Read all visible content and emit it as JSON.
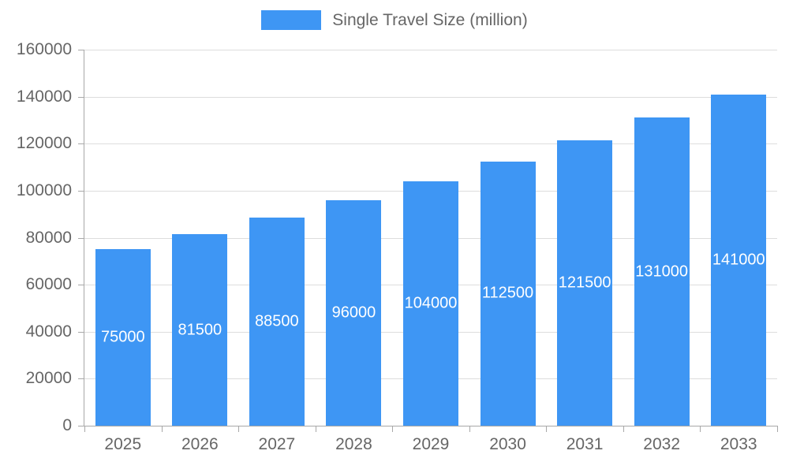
{
  "chart_data": {
    "type": "bar",
    "title": "Single Travel Size (million)",
    "categories": [
      "2025",
      "2026",
      "2027",
      "2028",
      "2029",
      "2030",
      "2031",
      "2032",
      "2033"
    ],
    "values": [
      75000,
      81500,
      88500,
      96000,
      104000,
      112500,
      121500,
      131000,
      141000
    ],
    "xlabel": "",
    "ylabel": "",
    "ylim": [
      0,
      160000
    ],
    "ytick_step": 20000,
    "grid": true,
    "legend_position": "top",
    "bar_color": "#3E96F4",
    "bar_label_color": "#ffffff",
    "axis_text_color": "#666666",
    "grid_color": "#dddddd",
    "axis_line_color": "#a8a8a8"
  }
}
